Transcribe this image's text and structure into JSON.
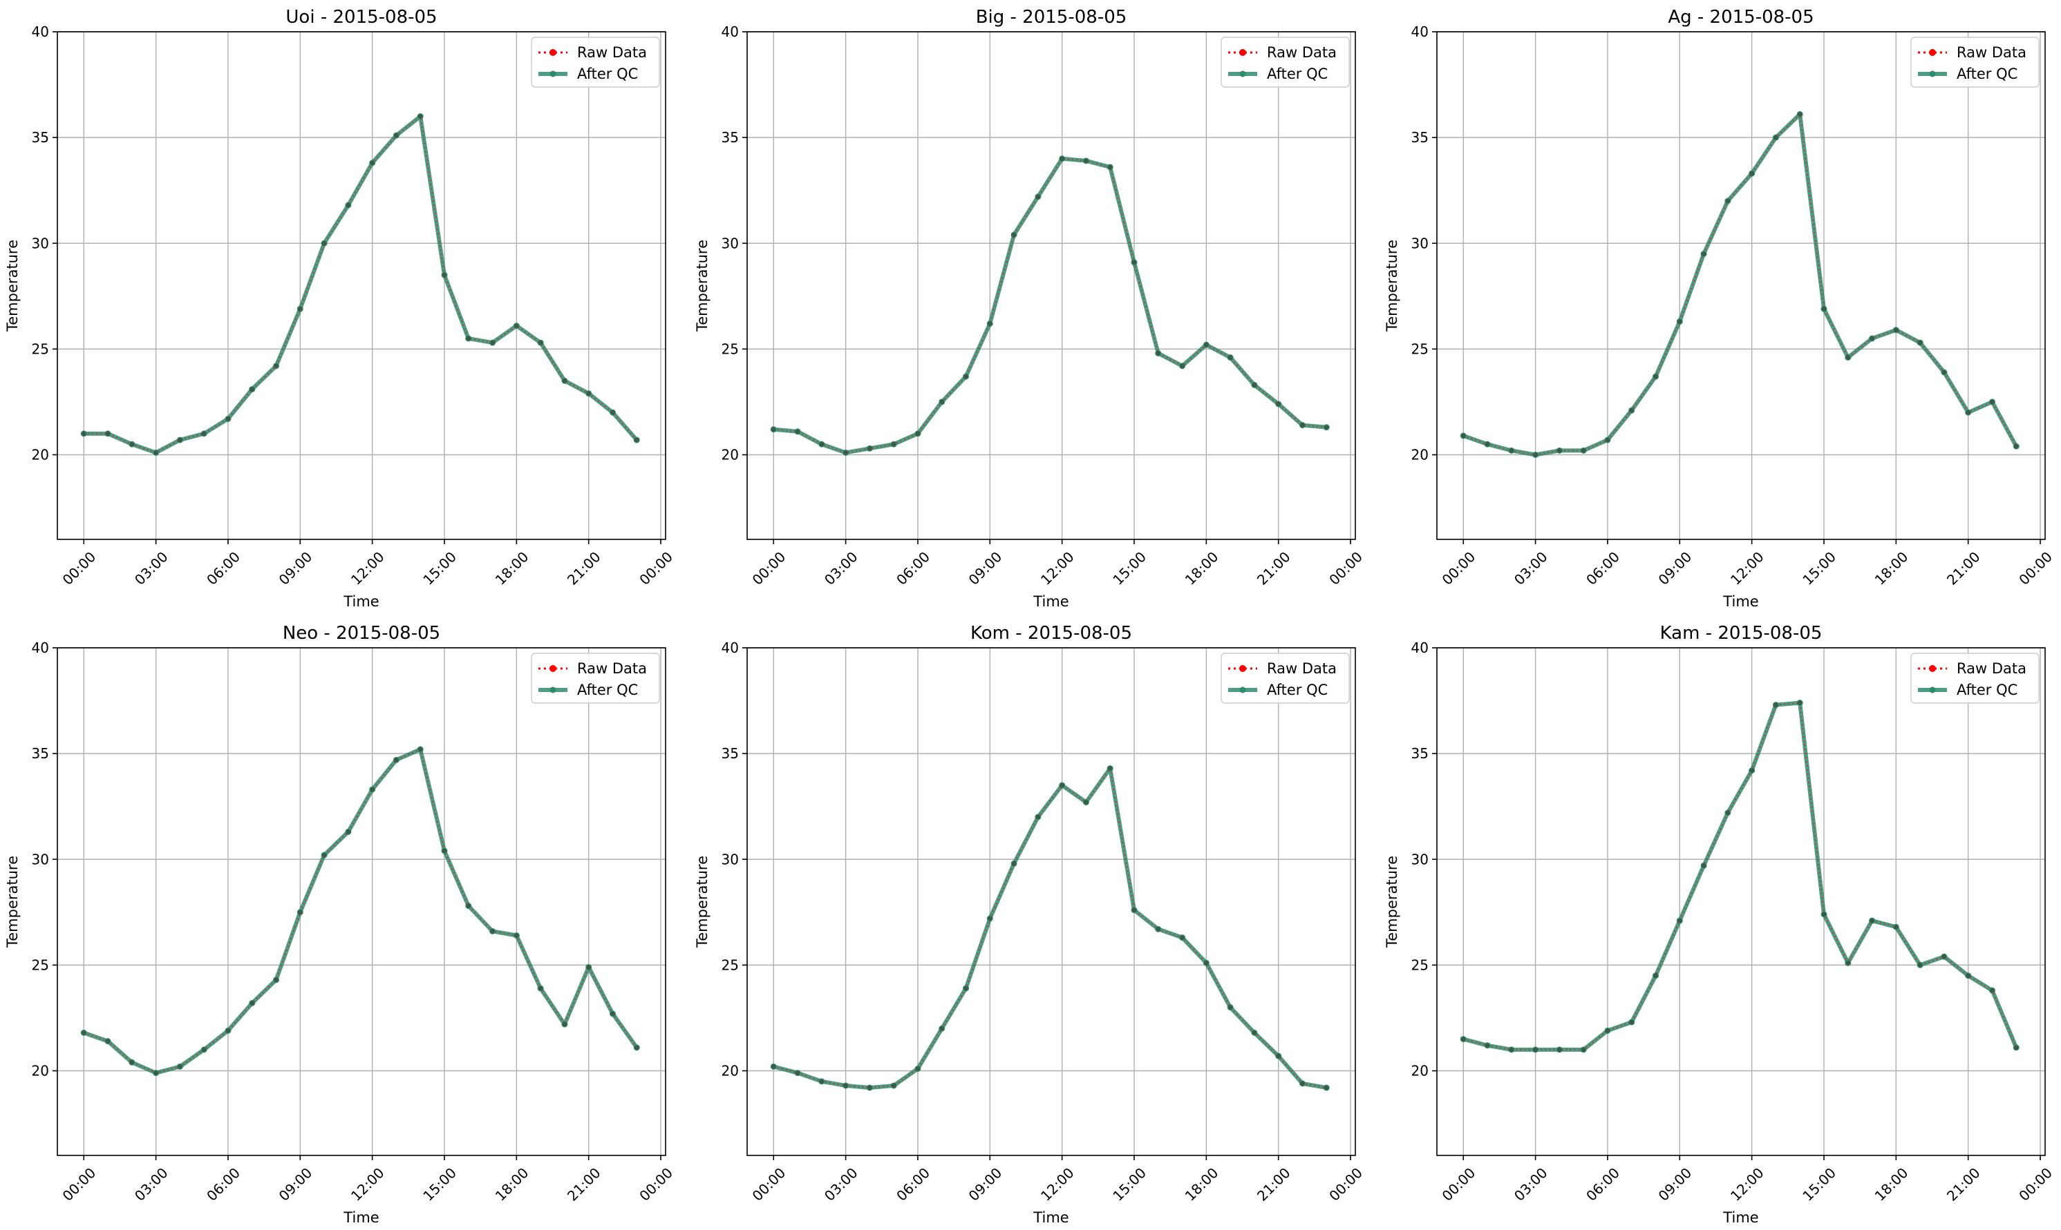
{
  "chart_data": [
    {
      "type": "line",
      "title": "Uoi - 2015-08-05",
      "xlabel": "Time",
      "ylabel": "Temperature",
      "ylim": [
        16,
        40
      ],
      "yticks": [
        20,
        25,
        30,
        35,
        40
      ],
      "xticks": [
        "00:00",
        "03:00",
        "06:00",
        "09:00",
        "12:00",
        "15:00",
        "18:00",
        "21:00",
        "00:00"
      ],
      "x_hours": [
        0,
        1,
        2,
        3,
        4,
        5,
        6,
        7,
        8,
        9,
        10,
        11,
        12,
        13,
        14,
        15,
        16,
        17,
        18,
        19,
        20,
        21,
        22,
        23
      ],
      "grid": true,
      "legend": "top-right",
      "series": [
        {
          "name": "Raw Data",
          "color": "#ff0000",
          "style": "dotted",
          "values": [
            21.0,
            21.0,
            20.5,
            20.1,
            20.7,
            21.0,
            21.7,
            23.1,
            24.2,
            26.9,
            30.0,
            31.8,
            33.8,
            35.1,
            36.0,
            28.5,
            25.5,
            25.3,
            26.1,
            25.3,
            23.5,
            22.9,
            22.0,
            20.7
          ]
        },
        {
          "name": "After QC",
          "color": "#2e8b6f",
          "style": "solid",
          "values": [
            21.0,
            21.0,
            20.5,
            20.1,
            20.7,
            21.0,
            21.7,
            23.1,
            24.2,
            26.9,
            30.0,
            31.8,
            33.8,
            35.1,
            36.0,
            28.5,
            25.5,
            25.3,
            26.1,
            25.3,
            23.5,
            22.9,
            22.0,
            20.7
          ]
        }
      ]
    },
    {
      "type": "line",
      "title": "Big - 2015-08-05",
      "xlabel": "Time",
      "ylabel": "Temperature",
      "ylim": [
        16,
        40
      ],
      "yticks": [
        20,
        25,
        30,
        35,
        40
      ],
      "xticks": [
        "00:00",
        "03:00",
        "06:00",
        "09:00",
        "12:00",
        "15:00",
        "18:00",
        "21:00",
        "00:00"
      ],
      "x_hours": [
        0,
        1,
        2,
        3,
        4,
        5,
        6,
        7,
        8,
        9,
        10,
        11,
        12,
        13,
        14,
        15,
        16,
        17,
        18,
        19,
        20,
        21,
        22,
        23
      ],
      "grid": true,
      "legend": "top-right",
      "series": [
        {
          "name": "Raw Data",
          "color": "#ff0000",
          "style": "dotted",
          "values": [
            21.2,
            21.1,
            20.5,
            20.1,
            20.3,
            20.5,
            21.0,
            22.5,
            23.7,
            26.2,
            30.4,
            32.2,
            34.0,
            33.9,
            33.6,
            29.1,
            24.8,
            24.2,
            25.2,
            24.6,
            23.3,
            22.4,
            21.4,
            21.3
          ]
        },
        {
          "name": "After QC",
          "color": "#2e8b6f",
          "style": "solid",
          "values": [
            21.2,
            21.1,
            20.5,
            20.1,
            20.3,
            20.5,
            21.0,
            22.5,
            23.7,
            26.2,
            30.4,
            32.2,
            34.0,
            33.9,
            33.6,
            29.1,
            24.8,
            24.2,
            25.2,
            24.6,
            23.3,
            22.4,
            21.4,
            21.3
          ]
        }
      ]
    },
    {
      "type": "line",
      "title": "Ag - 2015-08-05",
      "xlabel": "Time",
      "ylabel": "Temperature",
      "ylim": [
        16,
        40
      ],
      "yticks": [
        20,
        25,
        30,
        35,
        40
      ],
      "xticks": [
        "00:00",
        "03:00",
        "06:00",
        "09:00",
        "12:00",
        "15:00",
        "18:00",
        "21:00",
        "00:00"
      ],
      "x_hours": [
        0,
        1,
        2,
        3,
        4,
        5,
        6,
        7,
        8,
        9,
        10,
        11,
        12,
        13,
        14,
        15,
        16,
        17,
        18,
        19,
        20,
        21,
        22,
        23
      ],
      "grid": true,
      "legend": "top-right",
      "series": [
        {
          "name": "Raw Data",
          "color": "#ff0000",
          "style": "dotted",
          "values": [
            20.9,
            20.5,
            20.2,
            20.0,
            20.2,
            20.2,
            20.7,
            22.1,
            23.7,
            26.3,
            29.5,
            32.0,
            33.3,
            35.0,
            36.1,
            26.9,
            24.6,
            25.5,
            25.9,
            25.3,
            23.9,
            22.0,
            22.5,
            20.4
          ]
        },
        {
          "name": "After QC",
          "color": "#2e8b6f",
          "style": "solid",
          "values": [
            20.9,
            20.5,
            20.2,
            20.0,
            20.2,
            20.2,
            20.7,
            22.1,
            23.7,
            26.3,
            29.5,
            32.0,
            33.3,
            35.0,
            36.1,
            26.9,
            24.6,
            25.5,
            25.9,
            25.3,
            23.9,
            22.0,
            22.5,
            20.4
          ]
        }
      ]
    },
    {
      "type": "line",
      "title": "Neo - 2015-08-05",
      "xlabel": "Time",
      "ylabel": "Temperature",
      "ylim": [
        16,
        40
      ],
      "yticks": [
        20,
        25,
        30,
        35,
        40
      ],
      "xticks": [
        "00:00",
        "03:00",
        "06:00",
        "09:00",
        "12:00",
        "15:00",
        "18:00",
        "21:00",
        "00:00"
      ],
      "x_hours": [
        0,
        1,
        2,
        3,
        4,
        5,
        6,
        7,
        8,
        9,
        10,
        11,
        12,
        13,
        14,
        15,
        16,
        17,
        18,
        19,
        20,
        21,
        22,
        23
      ],
      "grid": true,
      "legend": "top-right",
      "series": [
        {
          "name": "Raw Data",
          "color": "#ff0000",
          "style": "dotted",
          "values": [
            21.8,
            21.4,
            20.4,
            19.9,
            20.2,
            21.0,
            21.9,
            23.2,
            24.3,
            27.5,
            30.2,
            31.3,
            33.3,
            34.7,
            35.2,
            30.4,
            27.8,
            26.6,
            26.4,
            23.9,
            22.2,
            24.9,
            22.7,
            21.1
          ]
        },
        {
          "name": "After QC",
          "color": "#2e8b6f",
          "style": "solid",
          "values": [
            21.8,
            21.4,
            20.4,
            19.9,
            20.2,
            21.0,
            21.9,
            23.2,
            24.3,
            27.5,
            30.2,
            31.3,
            33.3,
            34.7,
            35.2,
            30.4,
            27.8,
            26.6,
            26.4,
            23.9,
            22.2,
            24.9,
            22.7,
            21.1
          ]
        }
      ]
    },
    {
      "type": "line",
      "title": "Kom - 2015-08-05",
      "xlabel": "Time",
      "ylabel": "Temperature",
      "ylim": [
        16,
        40
      ],
      "yticks": [
        20,
        25,
        30,
        35,
        40
      ],
      "xticks": [
        "00:00",
        "03:00",
        "06:00",
        "09:00",
        "12:00",
        "15:00",
        "18:00",
        "21:00",
        "00:00"
      ],
      "x_hours": [
        0,
        1,
        2,
        3,
        4,
        5,
        6,
        7,
        8,
        9,
        10,
        11,
        12,
        13,
        14,
        15,
        16,
        17,
        18,
        19,
        20,
        21,
        22,
        23
      ],
      "grid": true,
      "legend": "top-right",
      "series": [
        {
          "name": "Raw Data",
          "color": "#ff0000",
          "style": "dotted",
          "values": [
            20.2,
            19.9,
            19.5,
            19.3,
            19.2,
            19.3,
            20.1,
            22.0,
            23.9,
            27.2,
            29.8,
            32.0,
            33.5,
            32.7,
            34.3,
            27.6,
            26.7,
            26.3,
            25.1,
            23.0,
            21.8,
            20.7,
            19.4,
            19.2
          ]
        },
        {
          "name": "After QC",
          "color": "#2e8b6f",
          "style": "solid",
          "values": [
            20.2,
            19.9,
            19.5,
            19.3,
            19.2,
            19.3,
            20.1,
            22.0,
            23.9,
            27.2,
            29.8,
            32.0,
            33.5,
            32.7,
            34.3,
            27.6,
            26.7,
            26.3,
            25.1,
            23.0,
            21.8,
            20.7,
            19.4,
            19.2
          ]
        }
      ]
    },
    {
      "type": "line",
      "title": "Kam - 2015-08-05",
      "xlabel": "Time",
      "ylabel": "Temperature",
      "ylim": [
        16,
        40
      ],
      "yticks": [
        20,
        25,
        30,
        35,
        40
      ],
      "xticks": [
        "00:00",
        "03:00",
        "06:00",
        "09:00",
        "12:00",
        "15:00",
        "18:00",
        "21:00",
        "00:00"
      ],
      "x_hours": [
        0,
        1,
        2,
        3,
        4,
        5,
        6,
        7,
        8,
        9,
        10,
        11,
        12,
        13,
        14,
        15,
        16,
        17,
        18,
        19,
        20,
        21,
        22,
        23
      ],
      "grid": true,
      "legend": "top-right",
      "series": [
        {
          "name": "Raw Data",
          "color": "#ff0000",
          "style": "dotted",
          "values": [
            21.5,
            21.2,
            21.0,
            21.0,
            21.0,
            21.0,
            21.9,
            22.3,
            24.5,
            27.1,
            29.7,
            32.2,
            34.2,
            37.3,
            37.4,
            27.4,
            25.1,
            27.1,
            26.8,
            25.0,
            25.4,
            24.5,
            23.8,
            21.1
          ]
        },
        {
          "name": "After QC",
          "color": "#2e8b6f",
          "style": "solid",
          "values": [
            21.5,
            21.2,
            21.0,
            21.0,
            21.0,
            21.0,
            21.9,
            22.3,
            24.5,
            27.1,
            29.7,
            32.2,
            34.2,
            37.3,
            37.4,
            27.4,
            25.1,
            27.1,
            26.8,
            25.0,
            25.4,
            24.5,
            23.8,
            21.1
          ]
        }
      ]
    }
  ]
}
